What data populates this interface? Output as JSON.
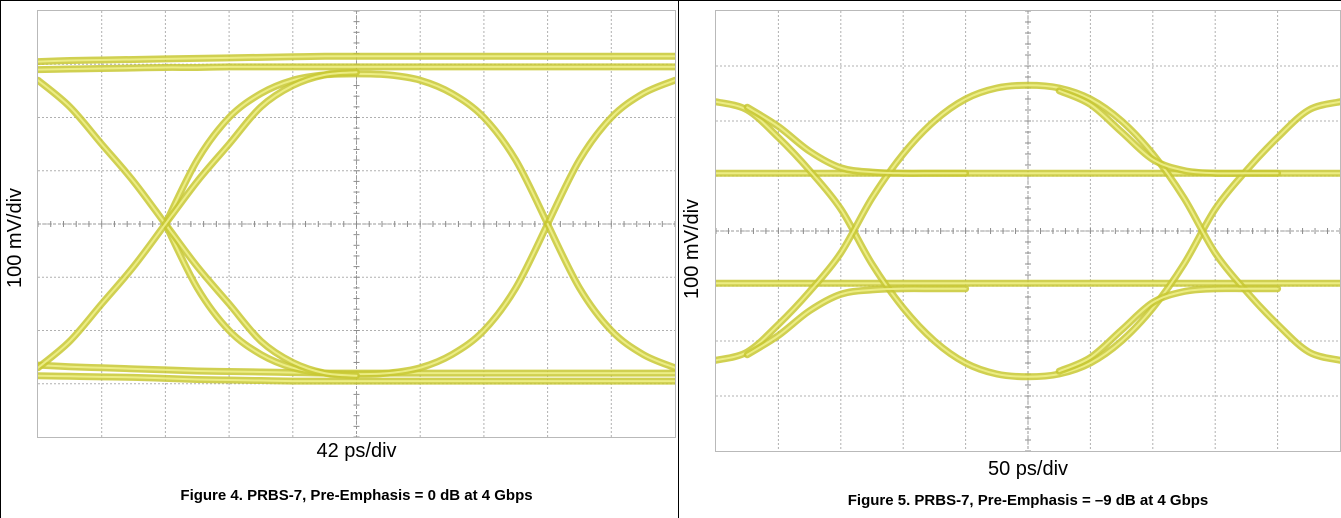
{
  "chart_data": [
    {
      "type": "line",
      "title": "Figure 4. PRBS-7, Pre-Emphasis = 0 dB at 4 Gbps",
      "xlabel": "42 ps/div",
      "ylabel": "100 mV/div",
      "x_divisions": 10,
      "y_divisions": 8,
      "grid": true,
      "color": "#c8c832",
      "series": [
        {
          "x": [
            0,
            0.5,
            1.0,
            1.5,
            2.0,
            2.5,
            3.0,
            3.5,
            4.0,
            4.5,
            5.0,
            5.5,
            6.0,
            6.5,
            7.0,
            7.5,
            8.0,
            8.5,
            9.0,
            9.5,
            10.0
          ],
          "y": [
            3.05,
            3.07,
            3.08,
            3.09,
            3.1,
            3.11,
            3.12,
            3.13,
            3.14,
            3.15,
            3.15,
            3.15,
            3.15,
            3.15,
            3.15,
            3.15,
            3.15,
            3.15,
            3.15,
            3.15,
            3.15
          ]
        },
        {
          "x": [
            0,
            0.5,
            1.0,
            1.5,
            2.0,
            2.5,
            3.0,
            3.5,
            4.0,
            4.5,
            5.0,
            5.5,
            6.0,
            6.5,
            7.0,
            7.5,
            8.0,
            8.5,
            9.0,
            9.5,
            10.0
          ],
          "y": [
            -2.85,
            -2.86,
            -2.87,
            -2.88,
            -2.9,
            -2.92,
            -2.93,
            -2.94,
            -2.95,
            -2.95,
            -2.95,
            -2.95,
            -2.95,
            -2.95,
            -2.95,
            -2.95,
            -2.95,
            -2.95,
            -2.95,
            -2.95,
            -2.95
          ]
        },
        {
          "x": [
            0,
            0.5,
            1.0,
            1.5,
            2.0,
            2.5,
            3.0,
            3.5,
            4.0,
            4.5,
            5.0,
            5.5,
            6.0,
            6.5,
            7.0,
            7.5,
            8.0,
            8.5,
            9.0,
            9.5,
            10.0
          ],
          "y": [
            -2.65,
            -2.68,
            -2.7,
            -2.72,
            -2.74,
            -2.76,
            -2.77,
            -2.78,
            -2.79,
            -2.8,
            -2.8,
            -2.8,
            -2.8,
            -2.8,
            -2.8,
            -2.8,
            -2.8,
            -2.8,
            -2.8,
            -2.8,
            -2.8
          ]
        },
        {
          "x": [
            0,
            0.5,
            1.0,
            1.5,
            2.0,
            2.5,
            3.0,
            3.5,
            4.0,
            4.5,
            5.0,
            5.5,
            6.0,
            6.5,
            7.0,
            7.5,
            8.0,
            8.5,
            9.0,
            9.5,
            10.0
          ],
          "y": [
            2.9,
            2.91,
            2.92,
            2.93,
            2.94,
            2.94,
            2.95,
            2.95,
            2.95,
            2.95,
            2.95,
            2.95,
            2.95,
            2.95,
            2.95,
            2.95,
            2.95,
            2.95,
            2.95,
            2.95,
            2.95
          ]
        },
        {
          "x": [
            2.0,
            2.5,
            3.0,
            3.5,
            4.0,
            4.5,
            5.0,
            5.5,
            6.0,
            6.5,
            7.0,
            7.5,
            8.0
          ],
          "y": [
            0,
            1.2,
            2.0,
            2.45,
            2.7,
            2.8,
            2.82,
            2.8,
            2.7,
            2.45,
            2.0,
            1.2,
            0
          ]
        },
        {
          "x": [
            2.0,
            2.5,
            3.0,
            3.5,
            4.0,
            4.5,
            5.0,
            5.5,
            6.0,
            6.5,
            7.0,
            7.5,
            8.0
          ],
          "y": [
            0,
            -1.2,
            -2.0,
            -2.45,
            -2.7,
            -2.8,
            -2.82,
            -2.8,
            -2.7,
            -2.45,
            -2.0,
            -1.2,
            0
          ]
        },
        {
          "x": [
            0,
            0.5,
            1.0,
            1.5,
            2.0,
            2.5,
            3.0,
            3.5,
            4.0,
            4.5,
            5.0
          ],
          "y": [
            2.7,
            2.2,
            1.5,
            0.8,
            0,
            -0.8,
            -1.5,
            -2.2,
            -2.6,
            -2.8,
            -2.85
          ]
        },
        {
          "x": [
            0,
            0.5,
            1.0,
            1.5,
            2.0,
            2.5,
            3.0,
            3.5,
            4.0,
            4.5,
            5.0
          ],
          "y": [
            -2.7,
            -2.2,
            -1.5,
            -0.8,
            0,
            0.8,
            1.5,
            2.2,
            2.6,
            2.8,
            2.85
          ]
        },
        {
          "x": [
            8.0,
            8.5,
            9.0,
            9.5,
            10.0
          ],
          "y": [
            0,
            1.2,
            2.0,
            2.45,
            2.7
          ]
        },
        {
          "x": [
            8.0,
            8.5,
            9.0,
            9.5,
            10.0
          ],
          "y": [
            0,
            -1.2,
            -2.0,
            -2.45,
            -2.7
          ]
        }
      ]
    },
    {
      "type": "line",
      "title": "Figure 5. PRBS-7, Pre-Emphasis = –9 dB at 4 Gbps",
      "xlabel": "50 ps/div",
      "ylabel": "100 mV/div",
      "x_divisions": 10,
      "y_divisions": 8,
      "grid": true,
      "color": "#c8c832",
      "series": [
        {
          "x": [
            0,
            0.5,
            1.0,
            1.5,
            2.0,
            2.5,
            3.0,
            3.5,
            4.0,
            4.5,
            5.0,
            5.5,
            6.0,
            6.5,
            7.0,
            7.5,
            8.0,
            8.5,
            9.0,
            9.5,
            10.0
          ],
          "y": [
            1.05,
            1.05,
            1.05,
            1.05,
            1.05,
            1.05,
            1.05,
            1.05,
            1.05,
            1.05,
            1.05,
            1.05,
            1.05,
            1.05,
            1.05,
            1.05,
            1.05,
            1.05,
            1.05,
            1.05,
            1.05
          ]
        },
        {
          "x": [
            0,
            0.5,
            1.0,
            1.5,
            2.0,
            2.5,
            3.0,
            3.5,
            4.0,
            4.5,
            5.0,
            5.5,
            6.0,
            6.5,
            7.0,
            7.5,
            8.0,
            8.5,
            9.0,
            9.5,
            10.0
          ],
          "y": [
            -0.95,
            -0.95,
            -0.95,
            -0.95,
            -0.95,
            -0.95,
            -0.95,
            -0.95,
            -0.95,
            -0.95,
            -0.95,
            -0.95,
            -0.95,
            -0.95,
            -0.95,
            -0.95,
            -0.95,
            -0.95,
            -0.95,
            -0.95,
            -0.95
          ]
        },
        {
          "x": [
            0,
            0.5,
            1.0,
            1.5,
            2.0,
            2.5,
            3.0,
            3.5,
            4.0,
            4.5,
            5.0,
            5.5,
            6.0,
            6.5,
            7.0,
            7.5,
            8.0,
            8.5,
            9.0,
            9.5,
            10.0
          ],
          "y": [
            2.35,
            2.2,
            1.7,
            1.1,
            0.4,
            -0.6,
            -1.4,
            -2.0,
            -2.4,
            -2.6,
            -2.65,
            -2.6,
            -2.4,
            -2.0,
            -1.4,
            -0.6,
            0.4,
            1.1,
            1.7,
            2.2,
            2.35
          ]
        },
        {
          "x": [
            0,
            0.5,
            1.0,
            1.5,
            2.0,
            2.5,
            3.0,
            3.5,
            4.0,
            4.5,
            5.0,
            5.5,
            6.0,
            6.5,
            7.0,
            7.5,
            8.0,
            8.5,
            9.0,
            9.5,
            10.0
          ],
          "y": [
            -2.35,
            -2.2,
            -1.7,
            -1.1,
            -0.4,
            0.6,
            1.4,
            2.0,
            2.4,
            2.6,
            2.65,
            2.6,
            2.4,
            2.0,
            1.4,
            0.6,
            -0.4,
            -1.1,
            -1.7,
            -2.2,
            -2.35
          ]
        },
        {
          "x": [
            0.5,
            1.0,
            1.5,
            2.0,
            2.5,
            3.0,
            3.5,
            4.0
          ],
          "y": [
            2.25,
            1.9,
            1.45,
            1.15,
            1.07,
            1.05,
            1.05,
            1.05
          ]
        },
        {
          "x": [
            0.5,
            1.0,
            1.5,
            2.0,
            2.5,
            3.0,
            3.5,
            4.0
          ],
          "y": [
            -2.25,
            -1.9,
            -1.45,
            -1.15,
            -1.07,
            -1.05,
            -1.05,
            -1.05
          ]
        },
        {
          "x": [
            5.5,
            6.0,
            6.5,
            7.0,
            7.5,
            8.0,
            8.5,
            9.0
          ],
          "y": [
            2.55,
            2.3,
            1.8,
            1.3,
            1.1,
            1.05,
            1.05,
            1.05
          ]
        },
        {
          "x": [
            5.5,
            6.0,
            6.5,
            7.0,
            7.5,
            8.0,
            8.5,
            9.0
          ],
          "y": [
            -2.55,
            -2.3,
            -1.8,
            -1.3,
            -1.1,
            -1.05,
            -1.05,
            -1.05
          ]
        }
      ]
    }
  ]
}
